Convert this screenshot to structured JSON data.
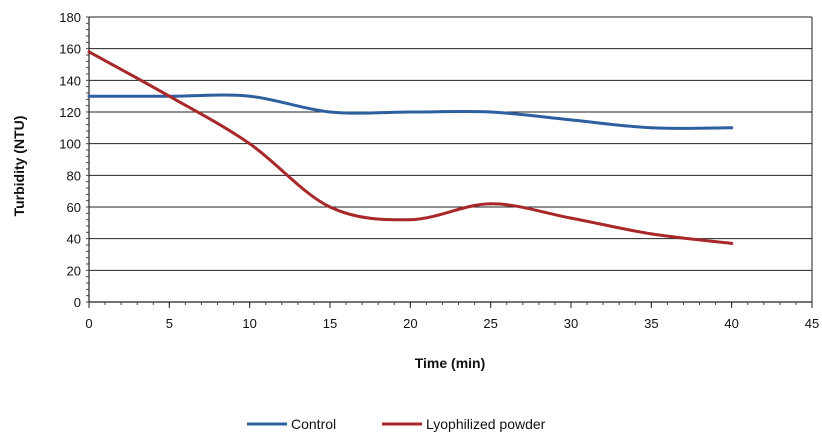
{
  "chart_data": {
    "type": "line",
    "title": "",
    "xlabel": "Time (min)",
    "ylabel": "Turbidity (NTU)",
    "xlim": [
      0,
      45
    ],
    "ylim": [
      0,
      180
    ],
    "xticks": [
      0,
      5,
      10,
      15,
      20,
      25,
      30,
      35,
      40,
      45
    ],
    "yticks": [
      0,
      20,
      40,
      60,
      80,
      100,
      120,
      140,
      160,
      180
    ],
    "grid": "horizontal",
    "legend_position": "bottom",
    "series": [
      {
        "name": "Control",
        "color": "#2e5f9e",
        "x": [
          0,
          5,
          10,
          15,
          20,
          25,
          30,
          35,
          40
        ],
        "y": [
          130,
          130,
          130,
          120,
          120,
          120,
          115,
          110,
          110
        ]
      },
      {
        "name": "Lyophilized powder",
        "color": "#a8282a",
        "x": [
          0,
          5,
          10,
          15,
          20,
          25,
          30,
          35,
          40
        ],
        "y": [
          158,
          130,
          100,
          60,
          52,
          62,
          53,
          43,
          37
        ]
      }
    ]
  }
}
